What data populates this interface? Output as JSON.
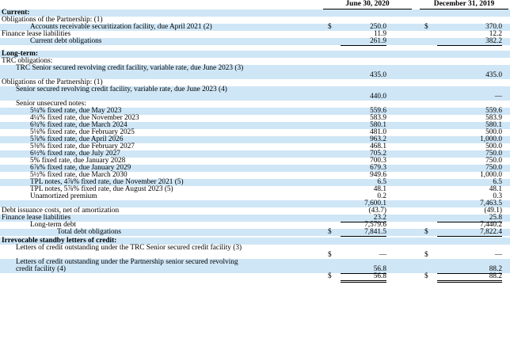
{
  "header": {
    "col1": "June 30, 2020",
    "col2": "December 31, 2019"
  },
  "current": {
    "heading": "Current:",
    "obligations": "Obligations of the Partnership: (1)",
    "ar_facility": {
      "label": "Accounts receivable securitization facility, due April 2021 (2)",
      "dollar": "$",
      "v1": "250.0",
      "v2": "370.0"
    },
    "fin_lease": {
      "label": "Finance lease liabilities",
      "v1": "11.9",
      "v2": "12.2"
    },
    "current_debt": {
      "label": "Current debt obligations",
      "v1": "261.9",
      "v2": "382.2"
    }
  },
  "longterm": {
    "heading": "Long-term:",
    "trc_obl": "TRC obligations:",
    "trc_credit": {
      "label": "TRC Senior secured revolving credit facility, variable rate, due June 2023 (3)",
      "v1": "435.0",
      "v2": "435.0"
    },
    "part_obl": "Obligations of the Partnership: (1)",
    "part_credit": {
      "label": "Senior secured revolving credit facility, variable rate, due June 2023 (4)",
      "v1": "440.0",
      "v2": "—"
    },
    "senior_unsecured": "Senior unsecured notes:",
    "notes": [
      {
        "label": "5¼% fixed rate, due May 2023",
        "v1": "559.6",
        "v2": "559.6"
      },
      {
        "label": "4¼% fixed rate, due November 2023",
        "v1": "583.9",
        "v2": "583.9"
      },
      {
        "label": "6¾% fixed rate, due March 2024",
        "v1": "580.1",
        "v2": "580.1"
      },
      {
        "label": "5⅛% fixed rate, due February 2025",
        "v1": "481.0",
        "v2": "500.0"
      },
      {
        "label": "5⅞% fixed rate, due April 2026",
        "v1": "963.2",
        "v2": "1,000.0"
      },
      {
        "label": "5⅜% fixed rate, due February 2027",
        "v1": "468.1",
        "v2": "500.0"
      },
      {
        "label": "6½% fixed rate, due July 2027",
        "v1": "705.2",
        "v2": "750.0"
      },
      {
        "label": "5% fixed rate, due January 2028",
        "v1": "700.3",
        "v2": "750.0"
      },
      {
        "label": "6⅞% fixed rate, due January 2029",
        "v1": "679.3",
        "v2": "750.0"
      },
      {
        "label": "5½% fixed rate, due March 2030",
        "v1": "949.6",
        "v2": "1,000.0"
      },
      {
        "label": "TPL notes, 4⅞% fixed rate, due November 2021 (5)",
        "v1": "6.5",
        "v2": "6.5"
      },
      {
        "label": "TPL notes, 5⅞% fixed rate, due August 2023 (5)",
        "v1": "48.1",
        "v2": "48.1"
      }
    ],
    "unamortized": {
      "label": "Unamortized premium",
      "v1": "0.2",
      "v2": "0.3"
    },
    "subtotal": {
      "v1": "7,600.1",
      "v2": "7,463.5"
    },
    "debt_costs": {
      "label": "Debt issuance costs, net of amortization",
      "v1": "(43.7)",
      "v2": "(49.1)"
    },
    "fin_lease": {
      "label": "Finance lease liabilities",
      "v1": "23.2",
      "v2": "25.8"
    },
    "lt_debt": {
      "label": "Long-term debt",
      "v1": "7,579.6",
      "v2": "7,440.2"
    },
    "total": {
      "label": "Total debt obligations",
      "dollar": "$",
      "v1": "7,841.5",
      "v2": "7,822.4"
    }
  },
  "letters": {
    "heading": "Irrevocable standby letters of credit:",
    "trc": {
      "label": "Letters of credit outstanding under the TRC Senior secured credit facility (3)",
      "dollar": "$",
      "v1": "—",
      "v2": "—"
    },
    "part": {
      "label": "Letters of credit outstanding under the Partnership senior secured revolving credit facility (4)",
      "v1": "56.8",
      "v2": "88.2"
    },
    "total": {
      "dollar": "$",
      "v1": "56.8",
      "v2": "88.2"
    }
  }
}
